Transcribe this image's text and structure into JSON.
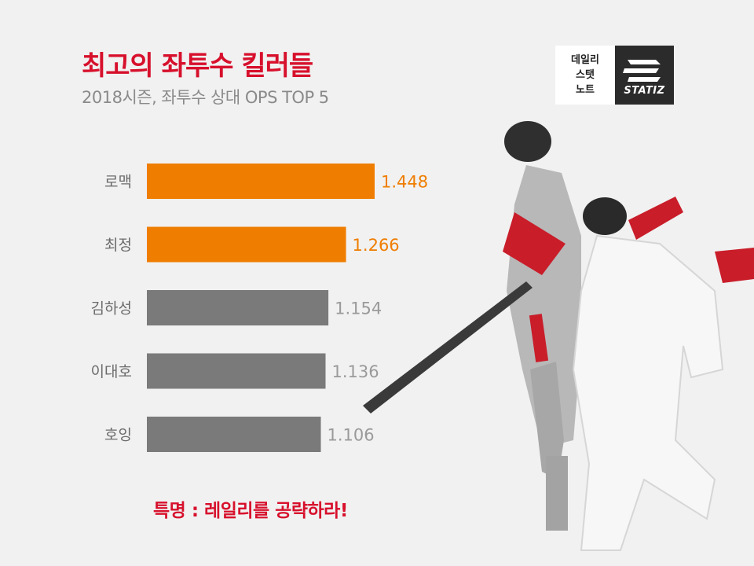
{
  "header": {
    "title": "최고의 좌투수 킬러들",
    "subtitle": "2018시즌, 좌투수 상대 OPS TOP 5"
  },
  "logo": {
    "line1": "데일리",
    "line2": "스탯",
    "line3": "노트",
    "brand": "STATIZ"
  },
  "colors": {
    "accent": "#d7102c",
    "highlight": "#ef7d00",
    "muted": "#7a7a7a",
    "label": "#6b6b6b",
    "muted_value": "#9a9a9a"
  },
  "chart_data": {
    "type": "bar",
    "orientation": "horizontal",
    "title": "최고의 좌투수 킬러들",
    "subtitle": "2018시즌, 좌투수 상대 OPS TOP 5",
    "categories": [
      "로맥",
      "최정",
      "김하성",
      "이대호",
      "호잉"
    ],
    "values": [
      1.448,
      1.266,
      1.154,
      1.136,
      1.106
    ],
    "value_labels": [
      "1.448",
      "1.266",
      "1.154",
      "1.136",
      "1.106"
    ],
    "highlighted": [
      true,
      true,
      false,
      false,
      false
    ],
    "xlim": [
      0,
      1.448
    ],
    "grid": false,
    "legend": "none"
  },
  "footnote": "특명 : 레일리를 공략하라!"
}
